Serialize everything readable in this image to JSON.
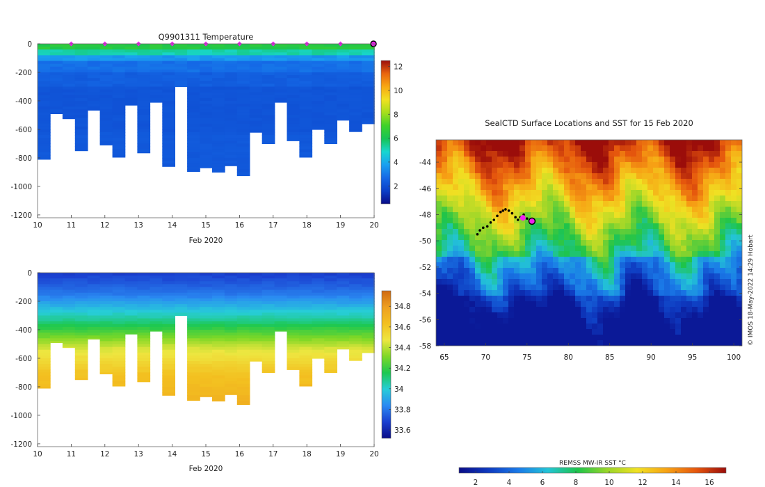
{
  "colors": {
    "temp_scale": [
      "#0a0c87",
      "#0b3fc8",
      "#1569e6",
      "#1aa0f0",
      "#18d6d0",
      "#16c455",
      "#3fd22a",
      "#a6de1c",
      "#f1e021",
      "#f8a812",
      "#e9650e",
      "#9b0d0a"
    ],
    "sal_scale": [
      "#0a0c87",
      "#1a3fd0",
      "#2a8af2",
      "#27cdd8",
      "#1dc850",
      "#7fd826",
      "#eee640",
      "#f3c020",
      "#eea020",
      "#d06a12"
    ],
    "sst_scale": [
      "#0a0c87",
      "#0e3ac0",
      "#1a7ae8",
      "#23c4d6",
      "#1ec44a",
      "#9ad629",
      "#f0e123",
      "#f7a214",
      "#e5560d",
      "#9b0d0a"
    ],
    "track": "#000000",
    "surface_marker": "#ee22ee"
  },
  "chart_data": [
    {
      "type": "heatmap",
      "title": "Q9901311  Temperature",
      "xlabel": "Feb 2020",
      "ylabel": "",
      "xlim": [
        10,
        20
      ],
      "ylim": [
        -1220,
        0
      ],
      "x_ticks": [
        "10",
        "11",
        "12",
        "13",
        "14",
        "15",
        "16",
        "17",
        "18",
        "19",
        "20"
      ],
      "y_ticks": [
        "0",
        "-200",
        "-400",
        "-600",
        "-800",
        "-1000",
        "-1200"
      ],
      "colorbar": {
        "range": [
          0.5,
          12.5
        ],
        "ticks": [
          "2",
          "4",
          "6",
          "8",
          "10",
          "12"
        ]
      },
      "surface_markers_x": [
        11,
        12,
        13,
        14,
        15,
        16,
        17,
        18,
        19
      ],
      "last_profile_marker_x": 20,
      "profile_depths": [
        -810,
        -490,
        -525,
        -750,
        -465,
        -710,
        -795,
        -430,
        -765,
        -410,
        -860,
        -300,
        -895,
        -870,
        -900,
        -855,
        -925,
        -620,
        -700,
        -410,
        -680,
        -795,
        -600,
        -700,
        -535,
        -615,
        -560
      ]
    },
    {
      "type": "heatmap",
      "title": "",
      "xlabel": "Feb 2020",
      "ylabel": "",
      "xlim": [
        10,
        20
      ],
      "ylim": [
        -1220,
        0
      ],
      "x_ticks": [
        "10",
        "11",
        "12",
        "13",
        "14",
        "15",
        "16",
        "17",
        "18",
        "19",
        "20"
      ],
      "y_ticks": [
        "0",
        "-200",
        "-400",
        "-600",
        "-800",
        "-1000",
        "-1200"
      ],
      "colorbar": {
        "range": [
          33.52,
          34.95
        ],
        "ticks": [
          "33.6",
          "33.8",
          "34",
          "34.2",
          "34.4",
          "34.6",
          "34.8"
        ]
      },
      "profile_depths": [
        -810,
        -490,
        -525,
        -750,
        -465,
        -710,
        -795,
        -430,
        -765,
        -410,
        -860,
        -300,
        -895,
        -870,
        -900,
        -855,
        -925,
        -620,
        -700,
        -410,
        -680,
        -795,
        -600,
        -700,
        -535,
        -615,
        -560
      ]
    },
    {
      "type": "heatmap",
      "title": "SealCTD Surface Locations and SST for 15 Feb 2020",
      "xlabel": "",
      "ylabel": "",
      "xlim": [
        64,
        101
      ],
      "ylim": [
        -58,
        -42.3
      ],
      "x_ticks": [
        "65",
        "70",
        "75",
        "80",
        "85",
        "90",
        "95",
        "100"
      ],
      "y_ticks": [
        "-44",
        "-46",
        "-48",
        "-50",
        "-52",
        "-54",
        "-56",
        "-58"
      ],
      "colorbar": {
        "label": "REMSS MW-IR SST °C",
        "range": [
          1,
          17
        ],
        "ticks": [
          "2",
          "4",
          "6",
          "8",
          "10",
          "12",
          "14",
          "16"
        ]
      },
      "track_lon": [
        69.0,
        69.3,
        69.7,
        70.2,
        70.6,
        71.0,
        71.4,
        71.8,
        72.1,
        72.4,
        72.8,
        73.2,
        73.6,
        73.9,
        74.2,
        74.6,
        75.0,
        75.4,
        75.6
      ],
      "track_lat": [
        -49.5,
        -49.2,
        -49.0,
        -48.9,
        -48.6,
        -48.4,
        -48.1,
        -47.8,
        -47.7,
        -47.6,
        -47.7,
        -47.9,
        -48.2,
        -48.4,
        -48.2,
        -48.0,
        -48.3,
        -48.5,
        -48.5
      ],
      "current_position": {
        "lon": 75.6,
        "lat": -48.5
      },
      "highlight_position": {
        "lon": 74.5,
        "lat": -48.25
      }
    }
  ],
  "credit": "© IMOS 18-May-2022 14:29 Hobart"
}
